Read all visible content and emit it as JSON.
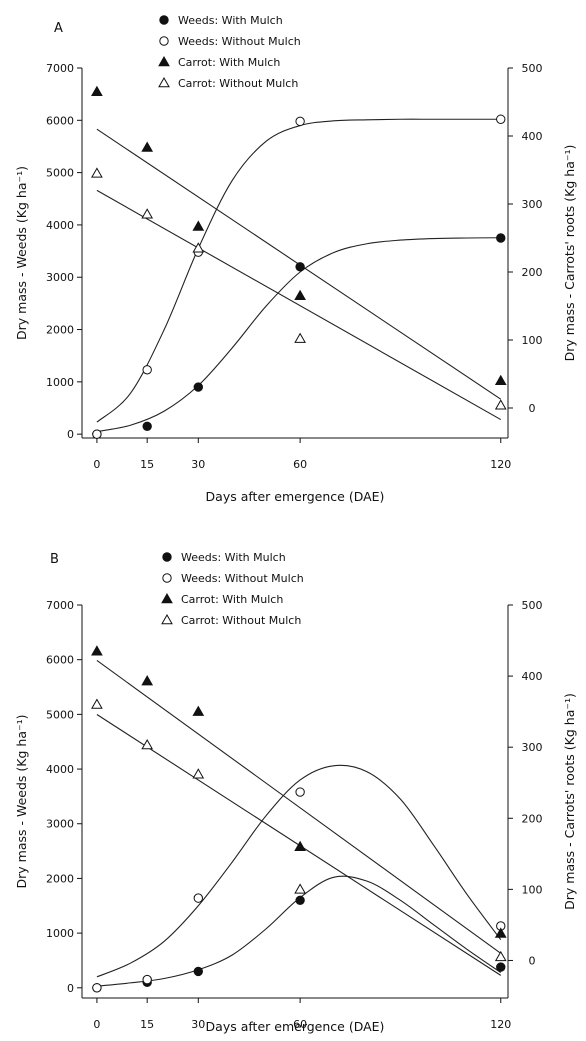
{
  "chart_data": [
    {
      "type": "scatter",
      "panel_label": "A",
      "xlabel": "Days after emergence (DAE)",
      "ylabel_left": "Dry mass - Weeds (Kg ha⁻¹)",
      "ylabel_right": "Dry mass - Carrots' roots (Kg ha⁻¹)",
      "x": [
        0,
        15,
        30,
        60,
        120
      ],
      "x_ticks": [
        "0",
        "15",
        "30",
        "60",
        "120"
      ],
      "y_left_ticks": [
        "0",
        "1000",
        "2000",
        "3000",
        "4000",
        "5000",
        "6000",
        "7000"
      ],
      "y_right_ticks": [
        "0",
        "100",
        "200",
        "300",
        "400",
        "500"
      ],
      "ylim_left": [
        -150,
        7000
      ],
      "ylim_right": [
        -50,
        500
      ],
      "series": [
        {
          "name": "Weeds: With Mulch",
          "marker": "filled-circle",
          "axis": "left",
          "values": [
            0,
            150,
            900,
            3200,
            3750
          ]
        },
        {
          "name": "Weeds: Without Mulch",
          "marker": "open-circle",
          "axis": "left",
          "values": [
            0,
            1230,
            3480,
            5980,
            6020
          ]
        },
        {
          "name": "Carrot: With Mulch",
          "marker": "filled-triangle",
          "axis": "right",
          "values": [
            465,
            383,
            267,
            165,
            40
          ]
        },
        {
          "name": "Carrot: Without Mulch",
          "marker": "open-triangle",
          "axis": "right",
          "values": [
            345,
            285,
            235,
            102,
            4
          ]
        }
      ],
      "fits": [
        {
          "series": "Weeds: With Mulch",
          "axis": "left",
          "x": [
            0,
            10,
            20,
            30,
            40,
            50,
            60,
            70,
            80,
            90,
            100,
            110,
            120
          ],
          "y": [
            50,
            170,
            440,
            930,
            1650,
            2450,
            3100,
            3470,
            3640,
            3710,
            3740,
            3750,
            3755
          ]
        },
        {
          "series": "Weeds: Without Mulch",
          "axis": "left",
          "x": [
            0,
            10,
            20,
            30,
            40,
            50,
            60,
            70,
            80,
            90,
            100,
            110,
            120
          ],
          "y": [
            230,
            780,
            2000,
            3550,
            4850,
            5600,
            5900,
            5990,
            6010,
            6020,
            6020,
            6020,
            6020
          ]
        },
        {
          "series": "Carrot: With Mulch",
          "axis": "right",
          "x": [
            0,
            120
          ],
          "y": [
            410,
            13
          ]
        },
        {
          "series": "Carrot: Without Mulch",
          "axis": "right",
          "x": [
            0,
            120
          ],
          "y": [
            320,
            -17
          ]
        }
      ]
    },
    {
      "type": "scatter",
      "panel_label": "B",
      "xlabel": "Days after emergence (DAE)",
      "ylabel_left": "Dry mass - Weeds (Kg ha⁻¹)",
      "ylabel_right": "Dry mass - Carrots' roots (Kg ha⁻¹)",
      "x": [
        0,
        15,
        30,
        60,
        120
      ],
      "x_ticks": [
        "0",
        "15",
        "30",
        "60",
        "120"
      ],
      "y_left_ticks": [
        "0",
        "1000",
        "2000",
        "3000",
        "4000",
        "5000",
        "6000",
        "7000"
      ],
      "y_right_ticks": [
        "0",
        "100",
        "200",
        "300",
        "400",
        "500"
      ],
      "ylim_left": [
        -150,
        7000
      ],
      "ylim_right": [
        -50,
        500
      ],
      "series": [
        {
          "name": "Weeds: With Mulch",
          "marker": "filled-circle",
          "axis": "left",
          "values": [
            0,
            100,
            300,
            1600,
            380
          ]
        },
        {
          "name": "Weeds: Without Mulch",
          "marker": "open-circle",
          "axis": "left",
          "values": [
            0,
            150,
            1640,
            3580,
            1130
          ]
        },
        {
          "name": "Carrot: With Mulch",
          "marker": "filled-triangle",
          "axis": "right",
          "values": [
            435,
            393,
            350,
            160,
            38
          ]
        },
        {
          "name": "Carrot: Without Mulch",
          "marker": "open-triangle",
          "axis": "right",
          "values": [
            360,
            303,
            262,
            100,
            5
          ]
        }
      ],
      "fits": [
        {
          "series": "Weeds: With Mulch",
          "axis": "left",
          "x": [
            0,
            10,
            20,
            30,
            40,
            50,
            60,
            70,
            80,
            90,
            100,
            110,
            120
          ],
          "y": [
            30,
            90,
            170,
            330,
            600,
            1080,
            1650,
            2020,
            1950,
            1600,
            1150,
            700,
            280
          ]
        },
        {
          "series": "Weeds: Without Mulch",
          "axis": "left",
          "x": [
            0,
            10,
            20,
            30,
            40,
            50,
            60,
            70,
            80,
            90,
            100,
            110,
            120
          ],
          "y": [
            200,
            450,
            850,
            1500,
            2300,
            3150,
            3800,
            4060,
            3950,
            3450,
            2600,
            1700,
            880
          ]
        },
        {
          "series": "Carrot: With Mulch",
          "axis": "right",
          "x": [
            0,
            120
          ],
          "y": [
            422,
            10
          ]
        },
        {
          "series": "Carrot: Without Mulch",
          "axis": "right",
          "x": [
            0,
            120
          ],
          "y": [
            346,
            -21
          ]
        }
      ]
    }
  ]
}
